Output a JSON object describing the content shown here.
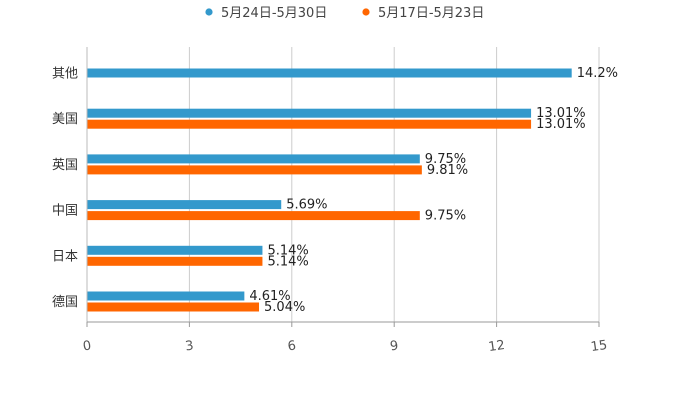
{
  "chart_data": {
    "type": "bar",
    "orientation": "horizontal",
    "title": "",
    "xlabel": "",
    "ylabel": "",
    "categories": [
      "其他",
      "美国",
      "英国",
      "中国",
      "日本",
      "德国"
    ],
    "series": [
      {
        "name": "5月24日-5月30日",
        "color": "#3399cc",
        "values": [
          14.2,
          13.01,
          9.75,
          5.69,
          5.14,
          4.61
        ],
        "labels": [
          "14.2%",
          "13.01%",
          "9.75%",
          "5.69%",
          "5.14%",
          "4.61%"
        ]
      },
      {
        "name": "5月17日-5月23日",
        "color": "#ff6600",
        "values": [
          null,
          13.01,
          9.81,
          9.75,
          5.14,
          5.04
        ],
        "labels": [
          null,
          "13.01%",
          "9.81%",
          "9.75%",
          "5.14%",
          "5.04%"
        ]
      }
    ],
    "xlim": [
      0,
      15
    ],
    "xticks": [
      0,
      3,
      6,
      9,
      12,
      15
    ],
    "xtick_labels": [
      "0",
      "3",
      "6",
      "9",
      "12",
      "15"
    ],
    "grid": "vertical",
    "legend_position": "top-center"
  }
}
